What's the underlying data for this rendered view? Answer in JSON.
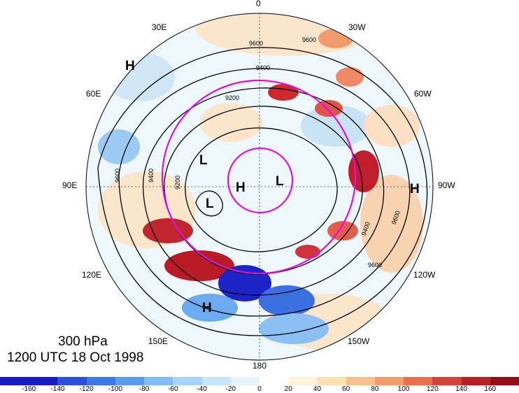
{
  "title": {
    "level": "300 hPa",
    "datetime": "1200 UTC 18 Oct 1998"
  },
  "longitude_labels": {
    "lon_0": "0",
    "lon_30w": "30W",
    "lon_60w": "60W",
    "lon_90w": "90W",
    "lon_120w": "120W",
    "lon_150w": "150W",
    "lon_180": "180",
    "lon_150e": "150E",
    "lon_120e": "120E",
    "lon_90e": "90E",
    "lon_60e": "60E",
    "lon_30e": "30E"
  },
  "pressure_centers": {
    "h_nw": "H",
    "h_east": "H",
    "h_center": "H",
    "h_south": "H",
    "l_center": "L",
    "l_inner_right": "L",
    "l_west": "L"
  },
  "contour_labels": {
    "c1": "9600",
    "c2": "9600",
    "c3": "9400",
    "c4": "9200",
    "c5": "9200",
    "c6": "9400",
    "c7": "9600",
    "c8": "9400",
    "c9": "9600",
    "c10": "9600"
  },
  "colorbar": {
    "ticks": [
      "-160",
      "-140",
      "-120",
      "-100",
      "-80",
      "-60",
      "-40",
      "-20",
      "0",
      "20",
      "40",
      "60",
      "80",
      "100",
      "120",
      "140",
      "160"
    ],
    "colors": [
      "#1a1acc",
      "#2a50dd",
      "#3c78e6",
      "#5c9cf0",
      "#84bcf6",
      "#a8d4f8",
      "#c8e6fa",
      "#e4f4fc",
      "#ffffff",
      "#fff4dc",
      "#fde0b4",
      "#f8c08c",
      "#f49a6c",
      "#ea6e4c",
      "#d8403a",
      "#bc1e28",
      "#980e18"
    ]
  },
  "colors": {
    "magenta_circle": "#e010e0",
    "contour": "#000000"
  }
}
